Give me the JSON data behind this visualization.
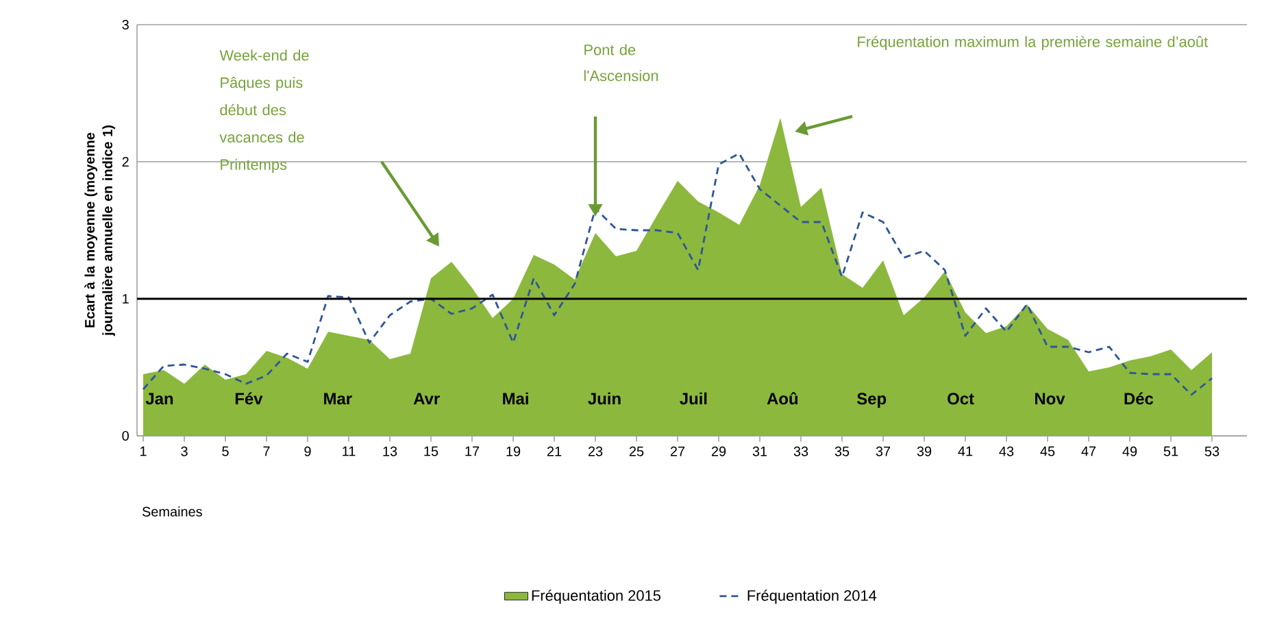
{
  "chart_data": {
    "type": "area",
    "xlabel": "Semaines",
    "ylabel": "Ecart à la moyenne (moyenne journalière annuelle en indice 1)",
    "x": [
      1,
      2,
      3,
      4,
      5,
      6,
      7,
      8,
      9,
      10,
      11,
      12,
      13,
      14,
      15,
      16,
      17,
      18,
      19,
      20,
      21,
      22,
      23,
      24,
      25,
      26,
      27,
      28,
      29,
      30,
      31,
      32,
      33,
      34,
      35,
      36,
      37,
      38,
      39,
      40,
      41,
      42,
      43,
      44,
      45,
      46,
      47,
      48,
      49,
      50,
      51,
      52,
      53
    ],
    "xlim": [
      0.7,
      54.7
    ],
    "xticks": [
      1,
      3,
      5,
      7,
      9,
      11,
      13,
      15,
      17,
      19,
      21,
      23,
      25,
      27,
      29,
      31,
      33,
      35,
      37,
      39,
      41,
      43,
      45,
      47,
      49,
      51,
      53
    ],
    "ylim": [
      0,
      3
    ],
    "yticks": [
      0,
      1,
      2,
      3
    ],
    "grid": "y",
    "legend": "bottom",
    "series": [
      {
        "name": "Fréquentation 2015",
        "color": "#8cb83e",
        "values": [
          0.45,
          0.48,
          0.38,
          0.52,
          0.41,
          0.45,
          0.62,
          0.57,
          0.49,
          0.76,
          0.73,
          0.7,
          0.56,
          0.6,
          1.15,
          1.27,
          1.08,
          0.86,
          1.0,
          1.32,
          1.25,
          1.14,
          1.48,
          1.31,
          1.35,
          1.61,
          1.86,
          1.71,
          1.63,
          1.54,
          1.83,
          2.32,
          1.67,
          1.81,
          1.18,
          1.08,
          1.28,
          0.88,
          1.01,
          1.2,
          0.9,
          0.75,
          0.8,
          0.96,
          0.78,
          0.7,
          0.47,
          0.5,
          0.55,
          0.58,
          0.63,
          0.48,
          0.61
        ]
      },
      {
        "name": "Fréquentation 2014",
        "type": "line",
        "line_style": "dashed",
        "color": "#2f5597",
        "values": [
          0.34,
          0.51,
          0.52,
          0.49,
          0.45,
          0.38,
          0.44,
          0.6,
          0.54,
          1.02,
          1.01,
          0.68,
          0.88,
          0.98,
          1.0,
          0.89,
          0.93,
          1.03,
          0.68,
          1.15,
          0.88,
          1.11,
          1.66,
          1.51,
          1.5,
          1.5,
          1.48,
          1.21,
          1.98,
          2.06,
          1.8,
          1.68,
          1.56,
          1.56,
          1.16,
          1.63,
          1.56,
          1.3,
          1.35,
          1.21,
          0.73,
          0.93,
          0.76,
          0.96,
          0.65,
          0.65,
          0.61,
          0.65,
          0.46,
          0.45,
          0.45,
          0.3,
          0.42
        ]
      }
    ],
    "ref_lines": [
      {
        "axis": "y",
        "value": 1,
        "color": "#000000"
      }
    ],
    "annotations": [
      "Jan",
      "Fév",
      "Mar",
      "Avr",
      "Mai",
      "Juin",
      "Juil",
      "Aoû",
      "Sep",
      "Oct",
      "Nov",
      "Déc",
      "Week-end de Pâques puis début des vacances de Printemps",
      "Pont de l'Ascension",
      "Fréquentation maximum la première semaine d’août"
    ]
  }
}
